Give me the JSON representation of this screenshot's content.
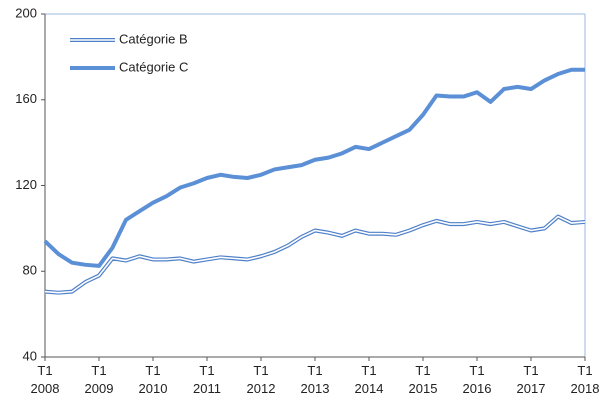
{
  "chart_data": {
    "type": "line",
    "categories": [
      "T1 2008",
      null,
      null,
      null,
      "T1 2009",
      null,
      null,
      null,
      "T1 2010",
      null,
      null,
      null,
      "T1 2011",
      null,
      null,
      null,
      "T1 2012",
      null,
      null,
      null,
      "T1 2013",
      null,
      null,
      null,
      "T1 2014",
      null,
      null,
      null,
      "T1 2015",
      null,
      null,
      null,
      "T1 2016",
      null,
      null,
      null,
      "T1 2017",
      null,
      null,
      null,
      "T1 2018"
    ],
    "series": [
      {
        "name": "Catégorie B",
        "color": "#4f81c9",
        "style": "double",
        "values": [
          70.5,
          70,
          70.5,
          75,
          78,
          86,
          85,
          87,
          85.5,
          85.5,
          86,
          84.5,
          85.5,
          86.5,
          86,
          85.5,
          87,
          89,
          92,
          96,
          99,
          98,
          96.5,
          99,
          97.5,
          97.5,
          97,
          99,
          101.5,
          103.5,
          102,
          102,
          103,
          102,
          103,
          101,
          99,
          100,
          105.5,
          102.5,
          103
        ]
      },
      {
        "name": "Catégorie C",
        "color": "#5b8fd6",
        "style": "thick",
        "values": [
          94,
          88,
          84,
          83,
          82.5,
          91,
          104,
          108,
          112,
          115,
          119,
          121,
          123.5,
          125,
          124,
          123.5,
          125,
          127.5,
          128.5,
          129.5,
          132,
          133,
          135,
          138,
          137,
          140,
          143,
          146,
          153,
          162,
          161.5,
          161.5,
          163.5,
          159,
          165,
          166,
          165,
          169,
          172,
          174,
          174
        ]
      }
    ],
    "ylim": [
      40,
      200
    ],
    "yticks": [
      40,
      80,
      120,
      160,
      200
    ],
    "legend": "upper left"
  }
}
